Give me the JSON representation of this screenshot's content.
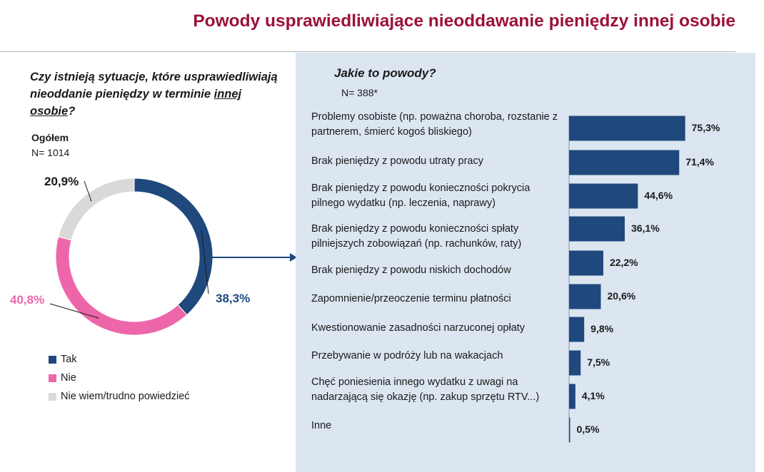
{
  "title": "Powody usprawiedliwiające nieoddawanie pieniędzy innej osobie",
  "left": {
    "question_part1": "Czy istnieją sytuacje, które usprawiedliwiają nieoddanie pieniędzy w terminie ",
    "question_underlined": "innej osobie",
    "question_end": "?",
    "overall_label": "Ogółem",
    "n_label": "N= 1014"
  },
  "right": {
    "question": "Jakie to powody?",
    "n_label": "N= 388*"
  },
  "colors": {
    "tak": "#1f497d",
    "nie": "#ee66aa",
    "nie_wiem": "#d9d9d9",
    "bar": "#1f497d",
    "panel": "#dce6f1",
    "title": "#9b1239"
  },
  "chart_data": [
    {
      "type": "pie",
      "variant": "donut",
      "categories": [
        "Tak",
        "Nie",
        "Nie wiem/trudno powiedzieć"
      ],
      "values": [
        38.3,
        40.8,
        20.9
      ],
      "value_labels": [
        "38,3%",
        "40,8%",
        "20,9%"
      ],
      "legend": "bottom-left"
    },
    {
      "type": "bar",
      "orientation": "horizontal",
      "categories": [
        "Problemy osobiste (np. poważna choroba, rozstanie z partnerem, śmierć kogoś bliskiego)",
        "Brak pieniędzy z powodu utraty pracy",
        "Brak pieniędzy z powodu konieczności pokrycia pilnego wydatku (np. leczenia, naprawy)",
        "Brak pieniędzy z powodu konieczności spłaty pilniejszych zobowiązań (np. rachunków, raty)",
        "Brak pieniędzy z powodu niskich dochodów",
        "Zapomnienie/przeoczenie terminu płatności",
        "Kwestionowanie zasadności narzuconej opłaty",
        "Przebywanie w podróży lub na wakacjach",
        "Chęć poniesienia innego wydatku z uwagi na nadarzającą się okazję (np. zakup sprzętu RTV...)",
        "Inne"
      ],
      "values": [
        75.3,
        71.4,
        44.6,
        36.1,
        22.2,
        20.6,
        9.8,
        7.5,
        4.1,
        0.5
      ],
      "value_labels": [
        "75,3%",
        "71,4%",
        "44,6%",
        "36,1%",
        "22,2%",
        "20,6%",
        "9,8%",
        "7,5%",
        "4,1%",
        "0,5%"
      ],
      "xlim": [
        0,
        100
      ]
    }
  ]
}
